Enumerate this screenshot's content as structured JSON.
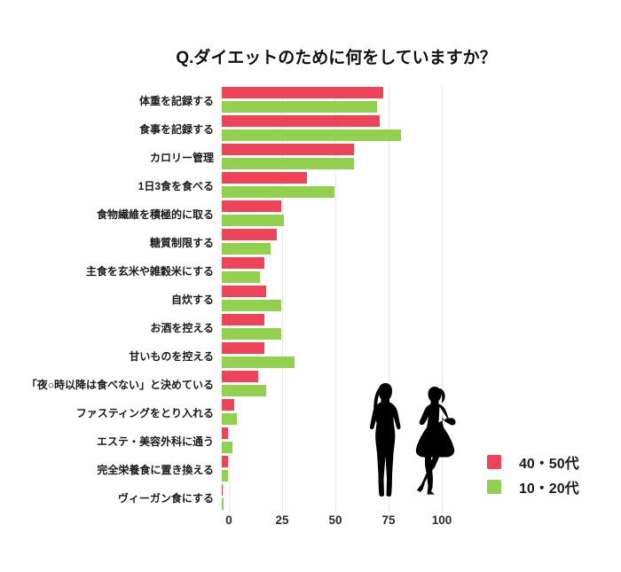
{
  "title": "Q.ダイエットのために何をしていますか？",
  "chart_data": {
    "type": "bar",
    "orientation": "horizontal",
    "title": "Q.ダイエットのために何をしていますか？",
    "categories": [
      "体重を記録する",
      "食事を記録する",
      "カロリー管理",
      "1日3食を食べる",
      "食物繊維を積極的に取る",
      "糖質制限する",
      "主食を玄米や雑穀米にする",
      "自炊する",
      "お酒を控える",
      "甘いものを控える",
      "「夜○時以降は食べない」と決めている",
      "ファスティングをとり入れる",
      "エステ・美容外科に通う",
      "完全栄養食に置き換える",
      "ヴィーガン食にする"
    ],
    "series": [
      {
        "name": "40・50代",
        "color": "#ee4358",
        "values": [
          76,
          74,
          62,
          40,
          28,
          26,
          20,
          21,
          20,
          20,
          17,
          6,
          3,
          3,
          0.5
        ]
      },
      {
        "name": "10・20代",
        "color": "#92d04f",
        "values": [
          73,
          84,
          62,
          53,
          29,
          23,
          18,
          28,
          28,
          34,
          21,
          7,
          5,
          3,
          1
        ]
      }
    ],
    "xlabel": "",
    "ylabel": "",
    "xlim": [
      0,
      110
    ],
    "ticks": [
      0,
      25,
      50,
      75,
      100
    ],
    "grid": "vertical",
    "gridline_color": "#e9e9e9",
    "legend_position": "bottom-right",
    "background": "#ffffff"
  },
  "illustration": {
    "name": "two-women-silhouettes",
    "color": "#000000"
  }
}
